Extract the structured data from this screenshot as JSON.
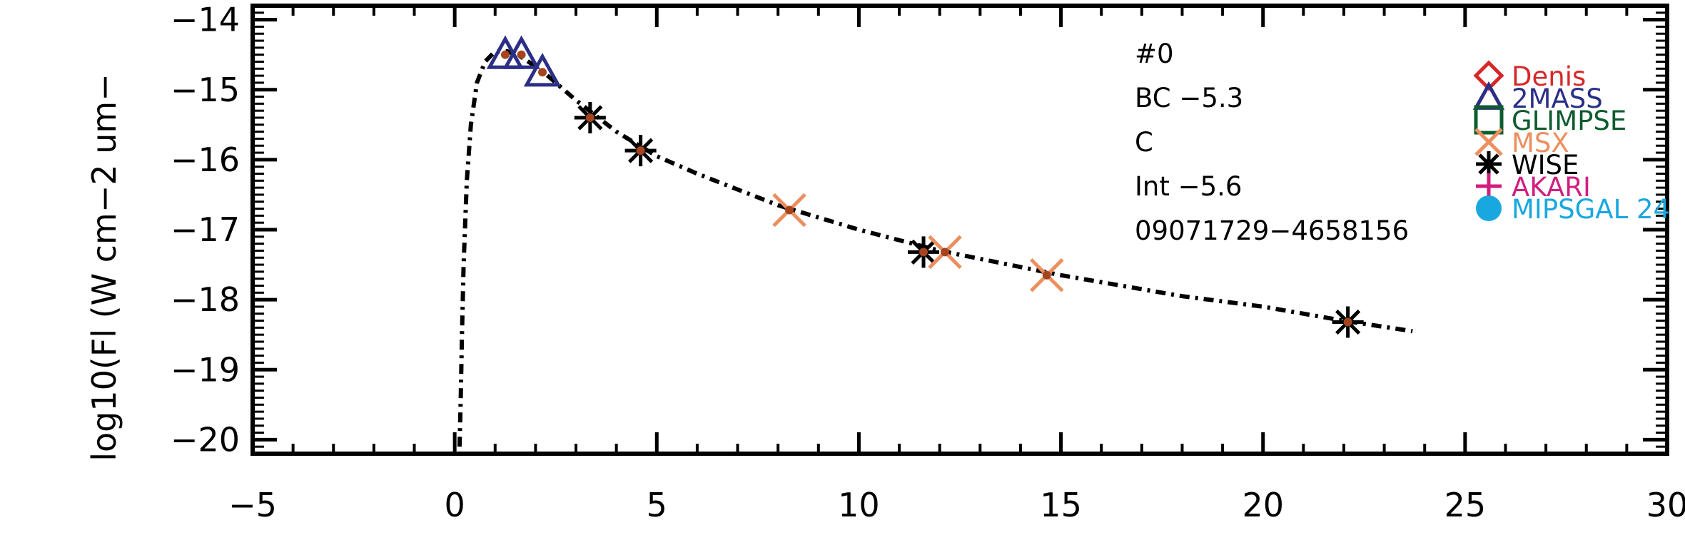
{
  "chart_data": {
    "type": "scatter",
    "ylabel": "log10(Fl (W cm−2 um−",
    "xlim": [
      -5,
      30
    ],
    "ylim": [
      -20.2,
      -13.8
    ],
    "x_ticks": [
      -5,
      0,
      5,
      10,
      15,
      20,
      25,
      30
    ],
    "x_tick_labels": [
      "−5",
      "0",
      "5",
      "10",
      "15",
      "20",
      "25",
      "30"
    ],
    "y_ticks": [
      -14,
      -15,
      -16,
      -17,
      -18,
      -19,
      -20
    ],
    "y_tick_labels": [
      "−14",
      "−15",
      "−16",
      "−17",
      "−18",
      "−19",
      "−20"
    ],
    "annotations": [
      "#0",
      "BC −5.3",
      "C",
      "Int −5.6",
      "09071729−4658156"
    ],
    "legend": {
      "placement": "right",
      "entries": [
        {
          "label": "Denis",
          "color": "#d62828",
          "marker": "diamond"
        },
        {
          "label": "2MASS",
          "color": "#2b2f86",
          "marker": "triangle"
        },
        {
          "label": "GLIMPSE",
          "color": "#0e5c2e",
          "marker": "square"
        },
        {
          "label": "MSX",
          "color": "#ec8f5e",
          "marker": "x"
        },
        {
          "label": "WISE",
          "color": "#000000",
          "marker": "asterisk"
        },
        {
          "label": "AKARI",
          "color": "#d11f7f",
          "marker": "plus"
        },
        {
          "label": "MIPSGAL 24",
          "color": "#19a7e0",
          "marker": "circle"
        }
      ]
    },
    "model_curve": {
      "x": [
        0.12,
        0.15,
        0.18,
        0.22,
        0.3,
        0.4,
        0.55,
        0.75,
        1.0,
        1.3,
        1.7,
        2.2,
        3.0,
        4.0,
        5.0,
        6.0,
        8.0,
        10.0,
        12.0,
        15.0,
        18.0,
        20.0,
        22.0,
        23.7
      ],
      "y": [
        -20.1,
        -19.4,
        -18.5,
        -17.5,
        -16.3,
        -15.5,
        -14.9,
        -14.6,
        -14.45,
        -14.45,
        -14.55,
        -14.75,
        -15.15,
        -15.6,
        -15.95,
        -16.2,
        -16.65,
        -17.0,
        -17.3,
        -17.65,
        -17.95,
        -18.1,
        -18.3,
        -18.45
      ]
    },
    "series": [
      {
        "name": "2MASS",
        "marker": "triangle",
        "color": "#2b2f86",
        "x": [
          1.25,
          1.65,
          2.17
        ],
        "y": [
          -14.5,
          -14.5,
          -14.75
        ]
      },
      {
        "name": "WISE",
        "marker": "asterisk",
        "color": "#000000",
        "x": [
          3.35,
          4.6,
          11.6,
          22.1
        ],
        "y": [
          -15.4,
          -15.87,
          -17.32,
          -18.32
        ]
      },
      {
        "name": "MSX",
        "marker": "x",
        "color": "#ec8f5e",
        "x": [
          8.28,
          12.13,
          14.65
        ],
        "y": [
          -16.72,
          -17.32,
          -17.65
        ]
      }
    ],
    "points_detail": {
      "x": [
        1.25,
        1.65,
        2.17,
        3.35,
        4.6,
        8.28,
        11.6,
        12.13,
        14.65,
        22.1
      ],
      "y": [
        -14.5,
        -14.5,
        -14.75,
        -15.4,
        -15.87,
        -16.72,
        -17.32,
        -17.32,
        -17.65,
        -18.32
      ],
      "color": "#a4451f"
    }
  }
}
